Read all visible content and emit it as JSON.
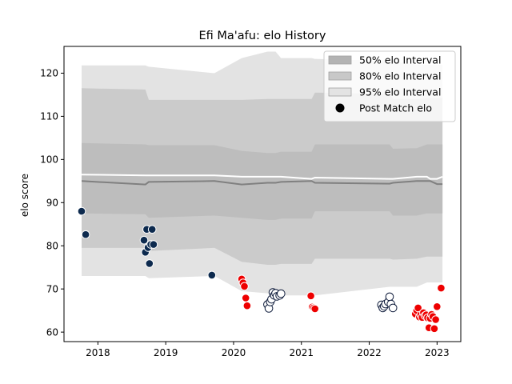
{
  "chart_data": {
    "type": "line",
    "title": "Efi Ma'afu: elo History",
    "xlabel": "",
    "ylabel": "elo score",
    "xlim": [
      2017.5,
      2023.35
    ],
    "ylim": [
      57.8,
      126.2
    ],
    "xticks": [
      2018,
      2019,
      2020,
      2021,
      2022,
      2023
    ],
    "yticks": [
      60,
      70,
      80,
      90,
      100,
      110,
      120
    ],
    "grid": false,
    "legend_placement": "top-right",
    "legend": [
      {
        "label": "50% elo Interval",
        "kind": "band",
        "color": "#b3b3b3"
      },
      {
        "label": "80% elo Interval",
        "kind": "band",
        "color": "#c8c8c8"
      },
      {
        "label": "95% elo Interval",
        "kind": "band",
        "color": "#e3e3e3"
      },
      {
        "label": "Post Match elo",
        "kind": "marker",
        "color": "#000000"
      }
    ],
    "bands": {
      "x": [
        2017.76,
        2018.7,
        2018.75,
        2019.7,
        2019.72,
        2020.12,
        2020.5,
        2020.62,
        2020.7,
        2021.15,
        2021.2,
        2022.3,
        2022.35,
        2022.7,
        2022.85,
        2022.9,
        2023.0,
        2023.08
      ],
      "b95_hi": [
        121.8,
        121.8,
        121.5,
        120.0,
        120.0,
        123.5,
        125.0,
        125.0,
        123.5,
        123.5,
        123.3,
        122.8,
        122.7,
        122.0,
        122.0,
        122.0,
        122.0,
        122.0
      ],
      "b95_lo": [
        73.0,
        73.0,
        72.5,
        73.0,
        73.0,
        69.5,
        69.0,
        69.0,
        68.5,
        68.5,
        68.5,
        70.5,
        70.5,
        70.5,
        71.5,
        71.5,
        71.5,
        71.5
      ],
      "b80_hi": [
        116.5,
        116.2,
        113.8,
        113.8,
        113.8,
        113.8,
        114.0,
        114.0,
        114.0,
        114.0,
        115.5,
        115.2,
        114.0,
        114.0,
        114.2,
        114.2,
        114.2,
        114.2
      ],
      "b80_lo": [
        79.5,
        79.5,
        78.8,
        79.5,
        79.5,
        76.3,
        75.6,
        75.6,
        75.8,
        75.8,
        77.0,
        77.0,
        76.8,
        77.0,
        77.5,
        77.5,
        77.5,
        77.5
      ],
      "b50_hi": [
        103.8,
        103.5,
        103.3,
        103.3,
        103.3,
        102.0,
        101.5,
        101.5,
        101.8,
        101.8,
        103.5,
        103.5,
        102.5,
        102.6,
        103.5,
        103.5,
        103.5,
        103.5
      ],
      "b50_lo": [
        87.5,
        87.3,
        86.5,
        87.0,
        87.0,
        86.5,
        86.0,
        86.0,
        86.3,
        86.3,
        88.0,
        88.0,
        87.0,
        87.0,
        87.5,
        87.5,
        87.5,
        87.5
      ],
      "mean": [
        95.0,
        94.2,
        94.8,
        95.0,
        95.0,
        94.2,
        94.6,
        94.6,
        94.8,
        95.0,
        94.6,
        94.4,
        94.6,
        95.0,
        95.0,
        95.0,
        94.3,
        94.3
      ],
      "upper": [
        96.5,
        96.3,
        96.3,
        96.3,
        96.3,
        96.0,
        96.0,
        96.0,
        96.0,
        95.5,
        95.8,
        95.5,
        95.5,
        96.0,
        96.0,
        95.5,
        95.5,
        96.0
      ]
    },
    "series": [
      {
        "style": "navy",
        "x": [
          2017.76,
          2017.82,
          2018.68,
          2018.7,
          2018.72,
          2018.74,
          2018.76,
          2018.78,
          2018.8,
          2018.82,
          2019.68
        ],
        "y": [
          88.0,
          82.6,
          81.3,
          78.5,
          83.8,
          79.6,
          75.9,
          80.3,
          83.8,
          80.3,
          73.2
        ]
      },
      {
        "style": "red",
        "x": [
          2020.12,
          2020.14,
          2020.16,
          2020.18,
          2020.2
        ],
        "y": [
          72.3,
          71.4,
          70.6,
          67.9,
          66.1
        ]
      },
      {
        "style": "hollow",
        "x": [
          2020.5,
          2020.52,
          2020.54,
          2020.56,
          2020.58,
          2020.6,
          2020.62,
          2020.64,
          2020.68,
          2020.7
        ],
        "y": [
          66.4,
          65.5,
          67.0,
          67.6,
          69.2,
          68.5,
          69.0,
          68.3,
          68.5,
          68.9
        ]
      },
      {
        "style": "red",
        "x": [
          2021.14,
          2021.16,
          2021.18,
          2021.2
        ],
        "y": [
          68.4,
          65.8,
          65.6,
          65.4
        ]
      },
      {
        "style": "hollow",
        "x": [
          2022.18,
          2022.2,
          2022.22,
          2022.24,
          2022.28,
          2022.3,
          2022.32,
          2022.35
        ],
        "y": [
          66.3,
          65.6,
          66.0,
          66.5,
          67.0,
          68.2,
          66.5,
          65.6
        ]
      },
      {
        "style": "red",
        "x": [
          2022.68,
          2022.7,
          2022.72,
          2022.74,
          2022.76,
          2022.78,
          2022.8,
          2022.82,
          2022.84,
          2022.86,
          2022.88,
          2022.9,
          2022.92,
          2022.94,
          2022.96,
          2022.98,
          2023.0,
          2023.06
        ],
        "y": [
          64.2,
          65.0,
          65.6,
          63.5,
          64.0,
          63.4,
          64.5,
          63.8,
          64.0,
          63.3,
          61.0,
          63.2,
          64.1,
          63.6,
          60.8,
          62.9,
          65.9,
          70.2
        ]
      }
    ]
  }
}
